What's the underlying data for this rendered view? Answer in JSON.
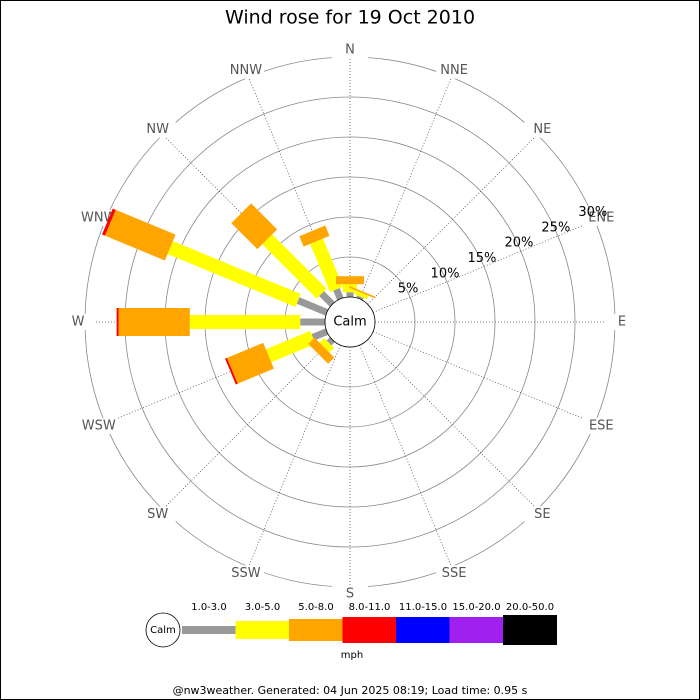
{
  "chart_data": {
    "type": "windrose",
    "title": "Wind rose for 19 Oct 2010",
    "directions": [
      "N",
      "NNE",
      "NE",
      "ENE",
      "E",
      "ESE",
      "SE",
      "SSE",
      "S",
      "SSW",
      "SW",
      "WSW",
      "W",
      "WNW",
      "NW",
      "NNW"
    ],
    "calm_label": "Calm",
    "unit_label": "mph",
    "rlim": [
      0,
      30
    ],
    "rticks": [
      {
        "value": 5,
        "label": "5%"
      },
      {
        "value": 10,
        "label": "10%"
      },
      {
        "value": 15,
        "label": "15%"
      },
      {
        "value": 20,
        "label": "20%"
      },
      {
        "value": 25,
        "label": "25%"
      },
      {
        "value": 30,
        "label": "30%"
      }
    ],
    "series": [
      {
        "name": "1.0-3.0",
        "color": "#999999",
        "values": [
          0.6,
          0.3,
          0,
          0,
          0,
          0,
          0,
          0,
          0,
          0,
          0.6,
          1.9,
          3.1,
          3.9,
          1.9,
          1.3
        ]
      },
      {
        "name": "3.0-5.0",
        "color": "#ffff00",
        "values": [
          1.0,
          0.5,
          0,
          0,
          0,
          0,
          0,
          0,
          0,
          0,
          0.8,
          6.0,
          13.8,
          17.3,
          9.6,
          6.5
        ]
      },
      {
        "name": "5.0-8.0",
        "color": "#ffa500",
        "values": [
          1.0,
          0.2,
          0,
          0,
          0,
          0,
          0,
          0,
          0,
          0,
          1.1,
          4.9,
          8.9,
          8.1,
          4.6,
          1.4
        ]
      },
      {
        "name": "8.0-11.0",
        "color": "#ff0000",
        "values": [
          0,
          0,
          0,
          0,
          0,
          0,
          0,
          0,
          0,
          0,
          0,
          0.25,
          0.25,
          0.4,
          0,
          0
        ]
      },
      {
        "name": "11.0-15.0",
        "color": "#0000ff",
        "values": [
          0,
          0,
          0,
          0,
          0,
          0,
          0,
          0,
          0,
          0,
          0,
          0,
          0,
          0,
          0,
          0
        ]
      },
      {
        "name": "15.0-20.0",
        "color": "#a020f0",
        "values": [
          0,
          0,
          0,
          0,
          0,
          0,
          0,
          0,
          0,
          0,
          0,
          0,
          0,
          0,
          0,
          0
        ]
      },
      {
        "name": "20.0-50.0",
        "color": "#000000",
        "values": [
          0,
          0,
          0,
          0,
          0,
          0,
          0,
          0,
          0,
          0,
          0,
          0,
          0,
          0,
          0,
          0
        ]
      }
    ],
    "footer": "@nw3weather. Generated: 04 Jun 2025 08:19; Load time: 0.95 s"
  }
}
